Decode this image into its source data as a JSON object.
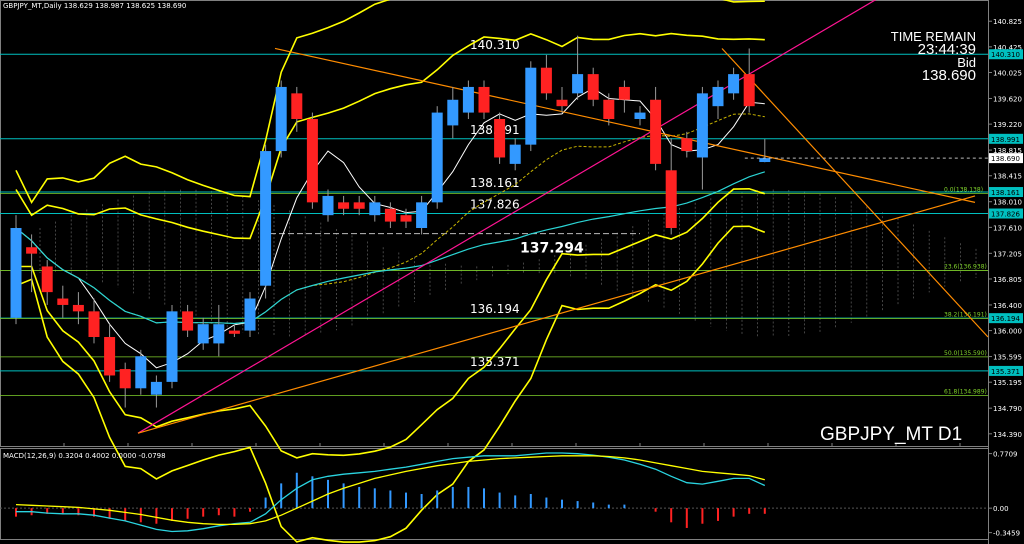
{
  "header": {
    "info": "GBPJPY_MT,Daily  138.629 138.987 138.625 138.690"
  },
  "timer": {
    "time_remain_label": "TIME REMAIN",
    "time_remain": "23:44:39",
    "bid_label": "Bid",
    "bid": "138.690"
  },
  "symbol_label": "GBPJPY_MT D1",
  "macd_info": "MACD(12,26,9) 0.3204 0.4002 0.0000 -0.0798",
  "chart_data": {
    "type": "candlestick",
    "symbol": "GBPJPY_MT",
    "timeframe": "Daily",
    "ylim": [
      134.2,
      141.0
    ],
    "y_ticks": [
      "140.825",
      "140.425",
      "140.025",
      "139.620",
      "139.220",
      "138.815",
      "138.415",
      "138.010",
      "137.610",
      "137.205",
      "136.805",
      "136.400",
      "136.000",
      "135.595",
      "135.195",
      "134.790",
      "134.390"
    ],
    "y_tick_values": [
      140.825,
      140.425,
      140.025,
      139.62,
      139.22,
      138.815,
      138.415,
      138.01,
      137.61,
      137.205,
      136.805,
      136.4,
      136.0,
      135.595,
      135.195,
      134.79,
      134.39
    ],
    "candles": [
      {
        "o": 136.2,
        "h": 137.8,
        "l": 136.1,
        "c": 137.6
      },
      {
        "o": 137.3,
        "h": 137.5,
        "l": 136.6,
        "c": 137.2
      },
      {
        "o": 137.0,
        "h": 137.1,
        "l": 136.4,
        "c": 136.6
      },
      {
        "o": 136.5,
        "h": 136.7,
        "l": 136.2,
        "c": 136.4
      },
      {
        "o": 136.4,
        "h": 136.6,
        "l": 136.1,
        "c": 136.3
      },
      {
        "o": 136.3,
        "h": 136.5,
        "l": 135.8,
        "c": 135.9
      },
      {
        "o": 135.9,
        "h": 136.1,
        "l": 135.2,
        "c": 135.3
      },
      {
        "o": 135.4,
        "h": 135.5,
        "l": 134.8,
        "c": 135.1
      },
      {
        "o": 135.1,
        "h": 135.7,
        "l": 135.0,
        "c": 135.6
      },
      {
        "o": 135.0,
        "h": 135.3,
        "l": 134.8,
        "c": 135.2
      },
      {
        "o": 135.2,
        "h": 136.4,
        "l": 135.1,
        "c": 136.3
      },
      {
        "o": 136.3,
        "h": 136.4,
        "l": 135.9,
        "c": 136.0
      },
      {
        "o": 135.8,
        "h": 136.2,
        "l": 135.7,
        "c": 136.1
      },
      {
        "o": 135.8,
        "h": 136.4,
        "l": 135.6,
        "c": 136.1
      },
      {
        "o": 136.0,
        "h": 136.1,
        "l": 135.9,
        "c": 135.95
      },
      {
        "o": 136.0,
        "h": 136.6,
        "l": 135.9,
        "c": 136.5
      },
      {
        "o": 136.7,
        "h": 138.9,
        "l": 136.5,
        "c": 138.8
      },
      {
        "o": 138.8,
        "h": 139.9,
        "l": 138.7,
        "c": 139.8
      },
      {
        "o": 139.7,
        "h": 139.8,
        "l": 139.1,
        "c": 139.3
      },
      {
        "o": 139.3,
        "h": 139.4,
        "l": 137.9,
        "c": 138.0
      },
      {
        "o": 137.8,
        "h": 138.2,
        "l": 137.7,
        "c": 138.1
      },
      {
        "o": 138.0,
        "h": 138.1,
        "l": 137.8,
        "c": 137.9
      },
      {
        "o": 138.0,
        "h": 138.1,
        "l": 137.8,
        "c": 137.9
      },
      {
        "o": 137.8,
        "h": 138.1,
        "l": 137.7,
        "c": 138.0
      },
      {
        "o": 137.9,
        "h": 138.0,
        "l": 137.6,
        "c": 137.7
      },
      {
        "o": 137.8,
        "h": 137.9,
        "l": 137.6,
        "c": 137.7
      },
      {
        "o": 137.6,
        "h": 138.1,
        "l": 137.5,
        "c": 138.0
      },
      {
        "o": 138.0,
        "h": 139.5,
        "l": 137.9,
        "c": 139.4
      },
      {
        "o": 139.2,
        "h": 139.8,
        "l": 139.0,
        "c": 139.6
      },
      {
        "o": 139.4,
        "h": 139.9,
        "l": 139.3,
        "c": 139.8
      },
      {
        "o": 139.8,
        "h": 139.9,
        "l": 139.3,
        "c": 139.4
      },
      {
        "o": 139.3,
        "h": 139.4,
        "l": 138.6,
        "c": 138.7
      },
      {
        "o": 138.6,
        "h": 139.0,
        "l": 138.5,
        "c": 138.9
      },
      {
        "o": 138.9,
        "h": 140.2,
        "l": 138.8,
        "c": 140.1
      },
      {
        "o": 140.1,
        "h": 140.3,
        "l": 139.6,
        "c": 139.7
      },
      {
        "o": 139.6,
        "h": 139.8,
        "l": 139.4,
        "c": 139.5
      },
      {
        "o": 139.7,
        "h": 140.6,
        "l": 139.6,
        "c": 140.0
      },
      {
        "o": 140.0,
        "h": 140.1,
        "l": 139.5,
        "c": 139.6
      },
      {
        "o": 139.6,
        "h": 139.7,
        "l": 139.2,
        "c": 139.3
      },
      {
        "o": 139.8,
        "h": 139.9,
        "l": 139.4,
        "c": 139.6
      },
      {
        "o": 139.3,
        "h": 139.5,
        "l": 139.2,
        "c": 139.4
      },
      {
        "o": 139.6,
        "h": 139.8,
        "l": 138.5,
        "c": 138.6
      },
      {
        "o": 138.5,
        "h": 139.0,
        "l": 137.5,
        "c": 137.6
      },
      {
        "o": 139.0,
        "h": 139.1,
        "l": 138.7,
        "c": 138.8
      },
      {
        "o": 138.7,
        "h": 139.8,
        "l": 138.2,
        "c": 139.7
      },
      {
        "o": 139.5,
        "h": 139.9,
        "l": 139.3,
        "c": 139.8
      },
      {
        "o": 139.7,
        "h": 140.1,
        "l": 139.6,
        "c": 140.0
      },
      {
        "o": 140.0,
        "h": 140.4,
        "l": 139.4,
        "c": 139.5
      },
      {
        "o": 138.629,
        "h": 138.987,
        "l": 138.625,
        "c": 138.69
      }
    ],
    "levels": [
      {
        "label": "140.310",
        "value": 140.31,
        "tag": "140.310"
      },
      {
        "label": "138.991",
        "value": 138.991,
        "tag": "138.991"
      },
      {
        "label": "138.161",
        "value": 138.161,
        "tag": "138.161"
      },
      {
        "label": "137.826",
        "value": 137.826,
        "tag": "137.826"
      },
      {
        "label": "136.194",
        "value": 136.194,
        "tag": "136.194"
      },
      {
        "label": "135.371",
        "value": 135.371,
        "tag": "135.371"
      }
    ],
    "highlight_level": {
      "label": "137.294",
      "value": 137.294
    },
    "fibo": [
      {
        "label": "0.0(138.138)",
        "value": 138.138
      },
      {
        "label": "23.6(136.938)",
        "value": 136.938
      },
      {
        "label": "38.2(136.191)",
        "value": 136.191
      },
      {
        "label": "50.0(135.590)",
        "value": 135.59
      },
      {
        "label": "61.8(134.989)",
        "value": 134.989
      }
    ],
    "price_tag": "138.690",
    "macd": {
      "ylim": [
        -0.45,
        0.85
      ],
      "y_ticks": [
        "0.7709",
        "0.00",
        "-0.3459"
      ],
      "y_tick_values": [
        0.7709,
        0.0,
        -0.3459
      ],
      "histogram": [
        -0.12,
        -0.1,
        -0.08,
        -0.09,
        -0.1,
        -0.12,
        -0.15,
        -0.18,
        -0.2,
        -0.22,
        -0.18,
        -0.15,
        -0.12,
        -0.1,
        -0.12,
        -0.05,
        0.15,
        0.35,
        0.5,
        0.45,
        0.4,
        0.35,
        0.3,
        0.28,
        0.25,
        0.22,
        0.2,
        0.25,
        0.3,
        0.3,
        0.28,
        0.22,
        0.18,
        0.2,
        0.15,
        0.12,
        0.1,
        0.08,
        0.05,
        0.05,
        0.0,
        -0.05,
        -0.2,
        -0.28,
        -0.22,
        -0.18,
        -0.12,
        -0.08,
        -0.08
      ],
      "macd_line": [
        -0.05,
        -0.05,
        -0.07,
        -0.08,
        -0.08,
        -0.1,
        -0.14,
        -0.18,
        -0.24,
        -0.3,
        -0.33,
        -0.32,
        -0.29,
        -0.25,
        -0.22,
        -0.2,
        -0.08,
        0.12,
        0.28,
        0.4,
        0.45,
        0.48,
        0.5,
        0.52,
        0.55,
        0.58,
        0.62,
        0.66,
        0.7,
        0.72,
        0.74,
        0.74,
        0.74,
        0.76,
        0.78,
        0.78,
        0.77,
        0.75,
        0.72,
        0.68,
        0.62,
        0.55,
        0.45,
        0.36,
        0.34,
        0.38,
        0.42,
        0.42,
        0.32
      ],
      "signal_line": [
        0.05,
        0.04,
        0.03,
        0.02,
        0.01,
        -0.01,
        -0.03,
        -0.06,
        -0.09,
        -0.13,
        -0.17,
        -0.2,
        -0.22,
        -0.23,
        -0.23,
        -0.22,
        -0.18,
        -0.1,
        0.0,
        0.1,
        0.2,
        0.28,
        0.35,
        0.42,
        0.47,
        0.52,
        0.56,
        0.6,
        0.63,
        0.66,
        0.68,
        0.7,
        0.71,
        0.72,
        0.73,
        0.74,
        0.74,
        0.74,
        0.73,
        0.71,
        0.68,
        0.64,
        0.6,
        0.56,
        0.52,
        0.5,
        0.48,
        0.46,
        0.4
      ]
    }
  },
  "colors": {
    "bull": "#3399ff",
    "bear": "#ff2222",
    "level": "#00bfbf",
    "fibo": "#7fd12b",
    "ma": "#ffff00",
    "bb": "#ffff00",
    "trend": "#ff8c00",
    "pink": "#ff1493",
    "cyan_ma": "#2bd4d4",
    "white_ma": "#ffffff"
  }
}
